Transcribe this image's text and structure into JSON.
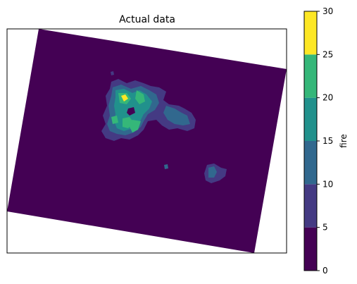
{
  "chart_data": {
    "type": "heatmap",
    "subtype": "filled-contour map",
    "title": "Actual data",
    "xlabel": "",
    "ylabel": "",
    "grid": false,
    "colorbar": {
      "label": "fire",
      "ticks": [
        0,
        5,
        10,
        15,
        20,
        25,
        30
      ],
      "range": [
        0,
        30
      ],
      "levels": [
        {
          "range": [
            0,
            5
          ],
          "color": "#440154"
        },
        {
          "range": [
            5,
            10
          ],
          "color": "#443a83"
        },
        {
          "range": [
            10,
            15
          ],
          "color": "#31688e"
        },
        {
          "range": [
            15,
            20
          ],
          "color": "#21918c"
        },
        {
          "range": [
            20,
            25
          ],
          "color": "#35b779"
        },
        {
          "range": [
            25,
            30
          ],
          "color": "#fde725"
        }
      ]
    },
    "field_summary": {
      "background_level": "0-5",
      "peak_level": "25-30",
      "hotspots": [
        {
          "name": "main cluster",
          "max_level": "25-30"
        },
        {
          "name": "eastern patch",
          "max_level": "10-15"
        },
        {
          "name": "small spot",
          "max_level": "5-10"
        }
      ]
    }
  }
}
